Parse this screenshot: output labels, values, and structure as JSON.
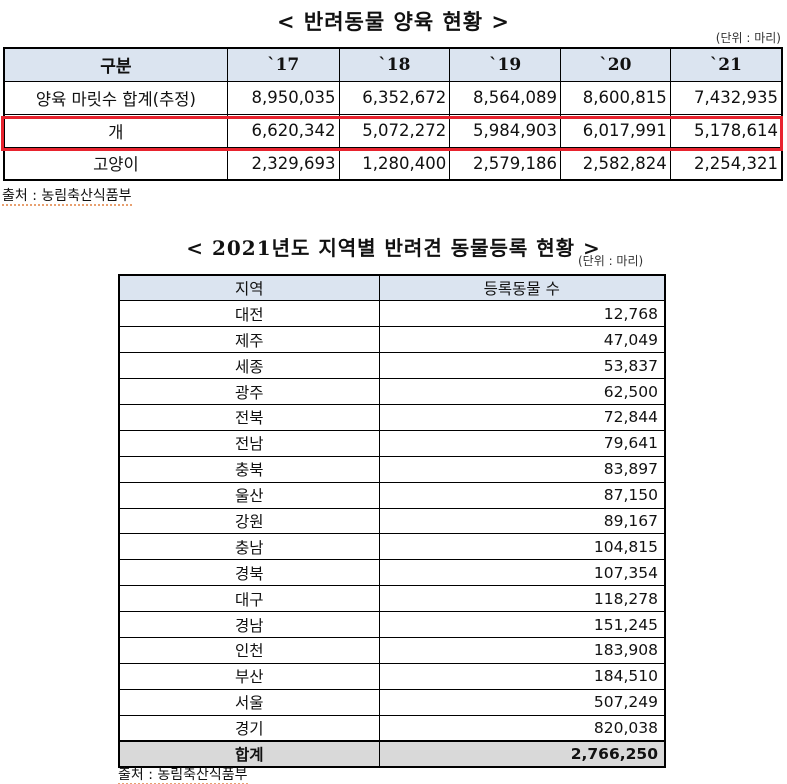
{
  "table1": {
    "title": "< 반려동물 양육 현황 >",
    "unit": "(단위 : 마리)",
    "headers": [
      "구분",
      "`17",
      "`18",
      "`19",
      "`20",
      "`21"
    ],
    "rows": [
      {
        "label": "양육 마릿수 합계(추정)",
        "values": [
          "8,950,035",
          "6,352,672",
          "8,564,089",
          "8,600,815",
          "7,432,935"
        ]
      },
      {
        "label": "개",
        "values": [
          "6,620,342",
          "5,072,272",
          "5,984,903",
          "6,017,991",
          "5,178,614"
        ]
      },
      {
        "label": "고양이",
        "values": [
          "2,329,693",
          "1,280,400",
          "2,579,186",
          "2,582,824",
          "2,254,321"
        ]
      }
    ],
    "source": "출처 : 농림축산식품부",
    "highlight_color": "#e8232e"
  },
  "table2": {
    "title": "< 2021년도 지역별 반려견 동물등록 현황 >",
    "unit": "(단위 : 마리)",
    "headers": [
      "지역",
      "등록동물 수"
    ],
    "rows": [
      {
        "region": "대전",
        "count": "12,768"
      },
      {
        "region": "제주",
        "count": "47,049"
      },
      {
        "region": "세종",
        "count": "53,837"
      },
      {
        "region": "광주",
        "count": "62,500"
      },
      {
        "region": "전북",
        "count": "72,844"
      },
      {
        "region": "전남",
        "count": "79,641"
      },
      {
        "region": "충북",
        "count": "83,897"
      },
      {
        "region": "울산",
        "count": "87,150"
      },
      {
        "region": "강원",
        "count": "89,167"
      },
      {
        "region": "충남",
        "count": "104,815"
      },
      {
        "region": "경북",
        "count": "107,354"
      },
      {
        "region": "대구",
        "count": "118,278"
      },
      {
        "region": "경남",
        "count": "151,245"
      },
      {
        "region": "인천",
        "count": "183,908"
      },
      {
        "region": "부산",
        "count": "184,510"
      },
      {
        "region": "서울",
        "count": "507,249"
      },
      {
        "region": "경기",
        "count": "820,038"
      }
    ],
    "total": {
      "label": "합계",
      "count": "2,766,250"
    },
    "source": "출처 : 농림축산식품부"
  },
  "colors": {
    "header_bg": "#dbe4f0",
    "total_bg": "#d9d9d9"
  }
}
